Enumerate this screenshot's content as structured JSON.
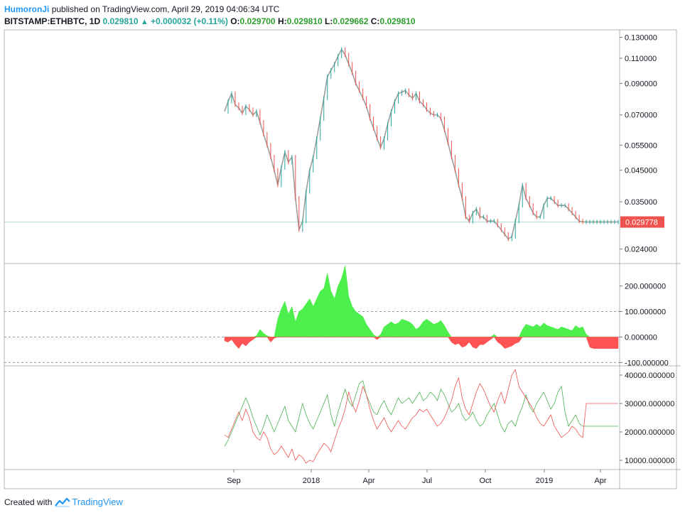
{
  "header": {
    "author": "HumoronJi",
    "published": "published on TradingView.com, April 29, 2019 04:06:34 UTC",
    "symbol": "BITSTAMP:ETHBTC, 1D",
    "price": "0.029810",
    "change": "+0.000032 (+0.11%)",
    "o_label": "O:",
    "o_value": "0.029700",
    "h_label": "H:",
    "h_value": "0.029810",
    "l_label": "L:",
    "l_value": "0.029662",
    "c_label": "C:",
    "c_value": "0.029810"
  },
  "footer": {
    "created_with": "Created with",
    "brand": "TradingView"
  },
  "colors": {
    "up": "#26a69a",
    "down": "#ef5350",
    "pos_area": "#4cef4c",
    "neg_area": "#ff5252",
    "line_green": "#4caf50",
    "line_red": "#ef5350"
  },
  "chart_data": [
    {
      "type": "line",
      "name": "price",
      "y_scale": "log",
      "ylim": [
        0.0215,
        0.138
      ],
      "x_ticks": [
        "Sep",
        "2018",
        "Apr",
        "Jul",
        "Oct",
        "2019",
        "Apr"
      ],
      "y_ticks": [
        "0.130000",
        "0.110000",
        "0.090000",
        "0.070000",
        "0.055000",
        "0.045000",
        "0.035000",
        "0.024000"
      ],
      "y_tick_values": [
        0.13,
        0.11,
        0.09,
        0.07,
        0.055,
        0.045,
        0.035,
        0.024
      ],
      "last_price_label": "0.029778",
      "last_price_value": 0.029778,
      "x": [
        0,
        5,
        10,
        15,
        20,
        25,
        30,
        35,
        40,
        45,
        50,
        55,
        60,
        65,
        70,
        75,
        80,
        85,
        90,
        95,
        100,
        105,
        110,
        115,
        120,
        125,
        130,
        135,
        140,
        145,
        150,
        155,
        160,
        165,
        170,
        175,
        180,
        185,
        190,
        195,
        200,
        205,
        210,
        215,
        220,
        225,
        230,
        235,
        240,
        245,
        250,
        255,
        260,
        265,
        270,
        275,
        280,
        285,
        290,
        295,
        300,
        305,
        310,
        315,
        320,
        325,
        330,
        335,
        340,
        345,
        350,
        355,
        360,
        365,
        370,
        375,
        380,
        385,
        390,
        395,
        400,
        405,
        410,
        415,
        420,
        425,
        430,
        435,
        440,
        445,
        450,
        455,
        460,
        465,
        470,
        475,
        480,
        485,
        490,
        495,
        500,
        505,
        510,
        515,
        520,
        525,
        530,
        535,
        540,
        545,
        550,
        555
      ],
      "values": [
        0.072,
        0.078,
        0.083,
        0.076,
        0.074,
        0.071,
        0.075,
        0.073,
        0.07,
        0.072,
        0.066,
        0.06,
        0.055,
        0.05,
        0.045,
        0.04,
        0.046,
        0.052,
        0.048,
        0.05,
        0.036,
        0.028,
        0.03,
        0.038,
        0.045,
        0.05,
        0.058,
        0.068,
        0.08,
        0.095,
        0.1,
        0.105,
        0.112,
        0.118,
        0.113,
        0.105,
        0.098,
        0.09,
        0.085,
        0.08,
        0.075,
        0.068,
        0.063,
        0.058,
        0.054,
        0.058,
        0.065,
        0.072,
        0.078,
        0.083,
        0.084,
        0.085,
        0.082,
        0.08,
        0.083,
        0.078,
        0.076,
        0.073,
        0.071,
        0.07,
        0.07,
        0.068,
        0.062,
        0.056,
        0.05,
        0.045,
        0.04,
        0.036,
        0.031,
        0.03,
        0.032,
        0.033,
        0.031,
        0.031,
        0.03,
        0.03,
        0.03,
        0.029,
        0.028,
        0.027,
        0.026,
        0.0265,
        0.03,
        0.034,
        0.04,
        0.036,
        0.034,
        0.032,
        0.031,
        0.031,
        0.034,
        0.036,
        0.036,
        0.035,
        0.034,
        0.034,
        0.034,
        0.033,
        0.032,
        0.031,
        0.03,
        0.0298,
        0.0298,
        0.0298,
        0.0298,
        0.0298,
        0.0298,
        0.0298,
        0.0298,
        0.0298,
        0.0298,
        0.0298
      ]
    },
    {
      "type": "area",
      "name": "oscillator",
      "ylim": [
        -110,
        285
      ],
      "y_ticks": [
        "200.000000",
        "100.000000",
        "0.000000",
        "-100.000000"
      ],
      "y_tick_values": [
        200,
        100,
        0,
        -100
      ],
      "x": [
        0,
        5,
        10,
        15,
        20,
        25,
        30,
        35,
        40,
        45,
        50,
        55,
        60,
        65,
        70,
        75,
        80,
        85,
        90,
        95,
        100,
        105,
        110,
        115,
        120,
        125,
        130,
        135,
        140,
        145,
        150,
        155,
        160,
        165,
        170,
        175,
        180,
        185,
        190,
        195,
        200,
        205,
        210,
        215,
        220,
        225,
        230,
        235,
        240,
        245,
        250,
        255,
        260,
        265,
        270,
        275,
        280,
        285,
        290,
        295,
        300,
        305,
        310,
        315,
        320,
        325,
        330,
        335,
        340,
        345,
        350,
        355,
        360,
        365,
        370,
        375,
        380,
        385,
        390,
        395,
        400,
        405,
        410,
        415,
        420,
        425,
        430,
        435,
        440,
        445,
        450,
        455,
        460,
        465,
        470,
        475,
        480,
        485,
        490,
        495,
        500,
        505,
        510,
        515,
        520,
        525,
        530,
        535,
        540,
        545,
        550,
        555
      ],
      "values": [
        -15,
        -20,
        -10,
        -30,
        -45,
        -25,
        -35,
        -20,
        -10,
        5,
        30,
        15,
        5,
        -20,
        -5,
        70,
        110,
        140,
        90,
        120,
        60,
        100,
        110,
        130,
        150,
        120,
        150,
        180,
        190,
        250,
        180,
        150,
        200,
        230,
        280,
        160,
        120,
        100,
        90,
        80,
        50,
        30,
        10,
        -10,
        10,
        40,
        50,
        60,
        50,
        55,
        70,
        65,
        60,
        50,
        30,
        40,
        60,
        70,
        60,
        50,
        55,
        65,
        45,
        20,
        -20,
        -30,
        -25,
        -40,
        -35,
        -20,
        -40,
        -45,
        -30,
        -30,
        -20,
        -10,
        10,
        -20,
        -30,
        -45,
        -40,
        -35,
        -25,
        -20,
        30,
        50,
        45,
        40,
        50,
        40,
        55,
        45,
        40,
        35,
        30,
        40,
        35,
        30,
        25,
        45,
        35,
        40,
        10,
        -40,
        -45,
        -45,
        -45,
        -45,
        -45,
        -45,
        -45,
        -45
      ]
    },
    {
      "type": "line",
      "name": "volume",
      "ylim": [
        7000,
        43000
      ],
      "y_ticks": [
        "40000.000000",
        "30000.000000",
        "20000.000000",
        "10000.000000"
      ],
      "y_tick_values": [
        40000,
        30000,
        20000,
        10000
      ],
      "series": [
        {
          "color": "#4caf50",
          "x": [
            0,
            5,
            10,
            15,
            20,
            25,
            30,
            35,
            40,
            45,
            50,
            55,
            60,
            65,
            70,
            75,
            80,
            85,
            90,
            95,
            100,
            105,
            110,
            115,
            120,
            125,
            130,
            135,
            140,
            145,
            150,
            155,
            160,
            165,
            170,
            175,
            180,
            185,
            190,
            195,
            200,
            205,
            210,
            215,
            220,
            225,
            230,
            235,
            240,
            245,
            250,
            255,
            260,
            265,
            270,
            275,
            280,
            285,
            290,
            295,
            300,
            305,
            310,
            315,
            320,
            325,
            330,
            335,
            340,
            345,
            350,
            355,
            360,
            365,
            370,
            375,
            380,
            385,
            390,
            395,
            400,
            405,
            410,
            415,
            420,
            425,
            430,
            435,
            440,
            445,
            450,
            455,
            460,
            465,
            470,
            475,
            480,
            485,
            490,
            495,
            500,
            505,
            510,
            515,
            520,
            525,
            530,
            535,
            540,
            545,
            550,
            555
          ],
          "values": [
            15000,
            17000,
            20000,
            23000,
            26000,
            29000,
            32000,
            29000,
            25000,
            22000,
            19000,
            22000,
            26000,
            23000,
            20000,
            23000,
            26000,
            29000,
            24000,
            22000,
            20000,
            25000,
            30000,
            26000,
            23000,
            21000,
            24000,
            27000,
            30000,
            33000,
            26000,
            22000,
            27000,
            31000,
            35000,
            31000,
            29000,
            33000,
            37000,
            38000,
            33000,
            30000,
            27000,
            26000,
            29000,
            31000,
            28000,
            26000,
            29000,
            32000,
            30000,
            31000,
            32000,
            30000,
            32000,
            34000,
            31000,
            32000,
            34000,
            33000,
            31000,
            35000,
            33000,
            30000,
            27000,
            28000,
            30000,
            26000,
            24000,
            25000,
            27000,
            24000,
            22000,
            23000,
            26000,
            28000,
            30000,
            26000,
            22000,
            20000,
            23000,
            24000,
            22000,
            26000,
            29000,
            33000,
            29000,
            27000,
            30000,
            32000,
            34000,
            31000,
            28000,
            30000,
            34000,
            36000,
            27000,
            22000,
            24000,
            26000,
            23000,
            22000,
            22000,
            22000,
            22000,
            22000,
            22000,
            22000,
            22000,
            22000,
            22000,
            22000
          ]
        },
        {
          "color": "#ef5350",
          "x": [
            0,
            5,
            10,
            15,
            20,
            25,
            30,
            35,
            40,
            45,
            50,
            55,
            60,
            65,
            70,
            75,
            80,
            85,
            90,
            95,
            100,
            105,
            110,
            115,
            120,
            125,
            130,
            135,
            140,
            145,
            150,
            155,
            160,
            165,
            170,
            175,
            180,
            185,
            190,
            195,
            200,
            205,
            210,
            215,
            220,
            225,
            230,
            235,
            240,
            245,
            250,
            255,
            260,
            265,
            270,
            275,
            280,
            285,
            290,
            295,
            300,
            305,
            310,
            315,
            320,
            325,
            330,
            335,
            340,
            345,
            350,
            355,
            360,
            365,
            370,
            375,
            380,
            385,
            390,
            395,
            400,
            405,
            410,
            415,
            420,
            425,
            430,
            435,
            440,
            445,
            450,
            455,
            460,
            465,
            470,
            475,
            480,
            485,
            490,
            495,
            500,
            505,
            510,
            515,
            520,
            525,
            530,
            535,
            540,
            545,
            550,
            555
          ],
          "values": [
            19000,
            18000,
            21000,
            24000,
            27000,
            24000,
            28000,
            25000,
            20000,
            18000,
            17000,
            20000,
            18000,
            14000,
            12000,
            13000,
            15000,
            13000,
            11000,
            14000,
            10000,
            12000,
            11000,
            9000,
            10000,
            9500,
            12000,
            14000,
            16000,
            15000,
            13000,
            17000,
            21000,
            24000,
            28000,
            34000,
            30000,
            27000,
            31000,
            36000,
            33000,
            28000,
            24000,
            21000,
            23000,
            25000,
            22000,
            20000,
            22000,
            24000,
            22000,
            21000,
            23000,
            25000,
            26000,
            28000,
            27000,
            28000,
            26000,
            24000,
            22000,
            23000,
            25000,
            28000,
            31000,
            36000,
            39000,
            32000,
            28000,
            26000,
            30000,
            34000,
            37000,
            35000,
            32000,
            29000,
            27000,
            31000,
            34000,
            30000,
            35000,
            40000,
            42000,
            36000,
            34000,
            32000,
            30000,
            28000,
            25000,
            23000,
            22000,
            24000,
            26000,
            22000,
            20000,
            18000,
            19000,
            20000,
            22000,
            21000,
            19000,
            18000,
            30000,
            30000,
            30000,
            30000,
            30000,
            30000,
            30000,
            30000,
            30000,
            30000
          ]
        }
      ]
    }
  ]
}
